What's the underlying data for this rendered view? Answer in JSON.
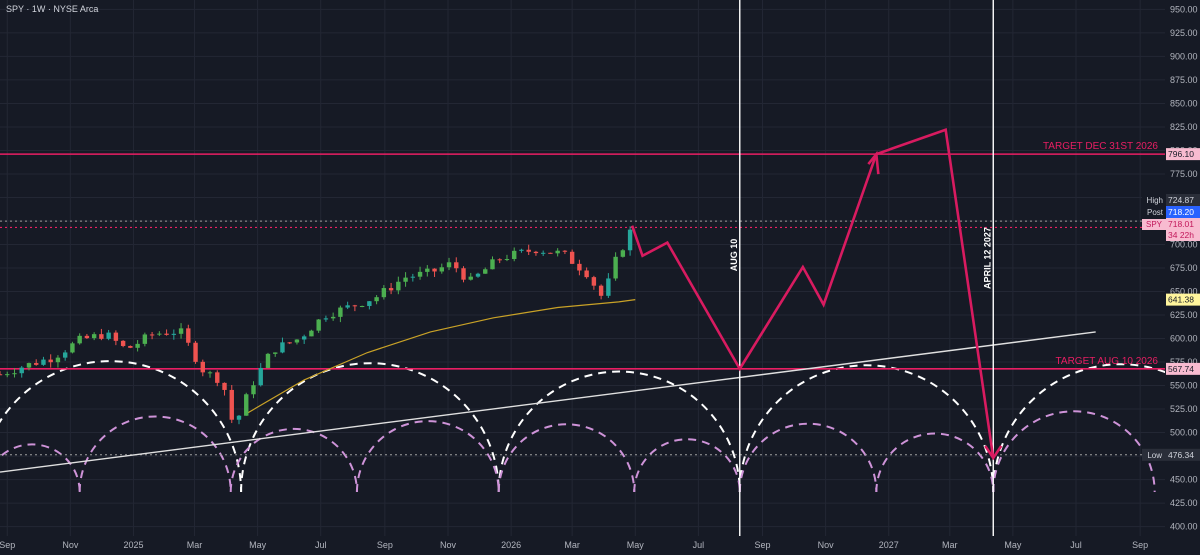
{
  "header": {
    "title": "SPY · 1W · NYSE Arca"
  },
  "colors": {
    "background": "#161a25",
    "axis_text": "#b2b5be",
    "grid": "#232734",
    "candle_up": "#26a69a",
    "candle_up_alt": "#4caf50",
    "candle_down": "#ef5350",
    "target_line": "#e91e63",
    "projection": "#d81b60",
    "ma_line": "#c9a227",
    "trendline": "#e0e0e0",
    "cycle_white": "#ffffff",
    "cycle_violet": "#ce93d8",
    "dotted_level": "#9e9e9e"
  },
  "chart_data": {
    "type": "candlestick",
    "symbol": "SPY",
    "timeframe": "1W",
    "exchange": "NYSE Arca",
    "y_axis": {
      "range": [
        390,
        960
      ],
      "ticks": [
        400,
        425,
        450,
        475,
        500,
        525,
        550,
        575,
        600,
        625,
        650,
        675,
        700,
        725,
        750,
        775,
        800,
        825,
        850,
        875,
        900,
        925,
        950
      ],
      "tick_labels": [
        "400.00",
        "425.00",
        "450.00",
        "475.00",
        "500.00",
        "525.00",
        "550.00",
        "575.00",
        "600.00",
        "625.00",
        "650.00",
        "675.00",
        "700.00",
        "725.00",
        "750.00",
        "775.00",
        "800.00",
        "825.00",
        "850.00",
        "875.00",
        "900.00",
        "925.00",
        "950.00"
      ]
    },
    "x_axis": {
      "range": [
        "2024-08-25",
        "2027-09-25"
      ],
      "ticks": [
        {
          "date": "2024-09-01",
          "label": "Sep"
        },
        {
          "date": "2024-11-01",
          "label": "Nov"
        },
        {
          "date": "2025-01-01",
          "label": "2025"
        },
        {
          "date": "2025-03-01",
          "label": "Mar"
        },
        {
          "date": "2025-05-01",
          "label": "May"
        },
        {
          "date": "2025-07-01",
          "label": "Jul"
        },
        {
          "date": "2025-09-01",
          "label": "Sep"
        },
        {
          "date": "2025-11-01",
          "label": "Nov"
        },
        {
          "date": "2026-01-01",
          "label": "2026"
        },
        {
          "date": "2026-03-01",
          "label": "Mar"
        },
        {
          "date": "2026-05-01",
          "label": "May"
        },
        {
          "date": "2026-07-01",
          "label": "Jul"
        },
        {
          "date": "2026-09-01",
          "label": "Sep"
        },
        {
          "date": "2026-11-01",
          "label": "Nov"
        },
        {
          "date": "2027-01-01",
          "label": "2027"
        },
        {
          "date": "2027-03-01",
          "label": "Mar"
        },
        {
          "date": "2027-05-01",
          "label": "May"
        },
        {
          "date": "2027-07-01",
          "label": "Jul"
        },
        {
          "date": "2027-09-01",
          "label": "Sep"
        }
      ]
    },
    "price_path": [
      [
        "2024-08-25",
        562
      ],
      [
        "2024-09-15",
        570
      ],
      [
        "2024-10-15",
        580
      ],
      [
        "2024-11-10",
        598
      ],
      [
        "2024-12-05",
        605
      ],
      [
        "2024-12-25",
        588
      ],
      [
        "2025-01-20",
        605
      ],
      [
        "2025-02-15",
        608
      ],
      [
        "2025-03-10",
        565
      ],
      [
        "2025-03-28",
        555
      ],
      [
        "2025-04-08",
        505
      ],
      [
        "2025-04-25",
        550
      ],
      [
        "2025-05-15",
        588
      ],
      [
        "2025-06-10",
        600
      ],
      [
        "2025-07-05",
        625
      ],
      [
        "2025-08-01",
        635
      ],
      [
        "2025-08-25",
        645
      ],
      [
        "2025-09-20",
        665
      ],
      [
        "2025-10-15",
        670
      ],
      [
        "2025-11-05",
        680
      ],
      [
        "2025-11-22",
        660
      ],
      [
        "2025-12-20",
        685
      ],
      [
        "2026-01-25",
        695
      ],
      [
        "2026-02-20",
        690
      ],
      [
        "2026-03-15",
        670
      ],
      [
        "2026-03-31",
        642
      ],
      [
        "2026-04-10",
        678
      ],
      [
        "2026-04-28",
        718
      ]
    ],
    "moving_average": [
      [
        "2025-04-20",
        520
      ],
      [
        "2025-06-15",
        556
      ],
      [
        "2025-08-15",
        585
      ],
      [
        "2025-10-15",
        607
      ],
      [
        "2025-12-15",
        622
      ],
      [
        "2026-02-15",
        633
      ],
      [
        "2026-04-15",
        639
      ],
      [
        "2026-05-01",
        641.38
      ]
    ],
    "projection_path": [
      [
        "2026-04-28",
        720
      ],
      [
        "2026-05-08",
        688
      ],
      [
        "2026-06-01",
        702
      ],
      [
        "2026-08-10",
        567.74
      ],
      [
        "2026-10-10",
        676
      ],
      [
        "2026-10-30",
        636
      ],
      [
        "2026-12-20",
        796.1
      ],
      [
        "2027-02-25",
        822
      ],
      [
        "2027-04-12",
        473
      ]
    ],
    "trendline": [
      [
        "2024-08-25",
        458
      ],
      [
        "2027-07-20",
        607
      ]
    ],
    "levels": [
      {
        "name": "TARGET DEC 31ST 2026",
        "value": 796.1,
        "label": "796.10",
        "style": "solid"
      },
      {
        "name": "TARGET AUG 10 2026",
        "value": 567.74,
        "label": "567.74",
        "style": "solid"
      },
      {
        "name": "High",
        "value": 724.87,
        "label": "724.87",
        "style": "dotted"
      },
      {
        "name": "Post",
        "value": 718.2,
        "label": "718.20",
        "style": "dotted"
      },
      {
        "name": "SPY",
        "value": 718.01,
        "label": "718.01",
        "style": "dotted"
      },
      {
        "name": "Low",
        "value": 476.34,
        "label": "476.34",
        "style": "dotted"
      },
      {
        "name": "MA",
        "value": 641.38,
        "label": "641.38",
        "style": "none"
      }
    ],
    "vertical_markers": [
      {
        "date": "2026-08-10",
        "label": "AUG 10"
      },
      {
        "date": "2027-04-12",
        "label": "APRIL 12 2027"
      }
    ],
    "cycle_arcs_white": [
      [
        "2024-08-05",
        "2025-04-15"
      ],
      [
        "2025-04-15",
        "2025-12-20"
      ],
      [
        "2025-12-20",
        "2026-08-10"
      ],
      [
        "2026-08-10",
        "2027-04-12"
      ],
      [
        "2027-04-12",
        "2027-12-15"
      ]
    ],
    "cycle_arcs_violet": [
      [
        "2024-08-10",
        "2024-11-10"
      ],
      [
        "2024-11-10",
        "2025-04-05"
      ],
      [
        "2025-04-05",
        "2025-08-05"
      ],
      [
        "2025-08-05",
        "2025-12-20"
      ],
      [
        "2025-12-20",
        "2026-04-30"
      ],
      [
        "2026-04-30",
        "2026-08-10"
      ],
      [
        "2026-08-10",
        "2026-12-20"
      ],
      [
        "2026-12-20",
        "2027-04-12"
      ],
      [
        "2027-04-12",
        "2027-09-15"
      ]
    ],
    "badges": {
      "high_label": "High",
      "high_value": "724.87",
      "post_label": "Post",
      "post_value": "718.20",
      "spy_label": "SPY",
      "spy_value": "718.01",
      "spy_countdown": "34 22h",
      "ma_value": "641.38",
      "low_label": "Low",
      "low_value": "476.34",
      "target_dec_value": "796.10",
      "target_aug_value": "567.74"
    }
  }
}
